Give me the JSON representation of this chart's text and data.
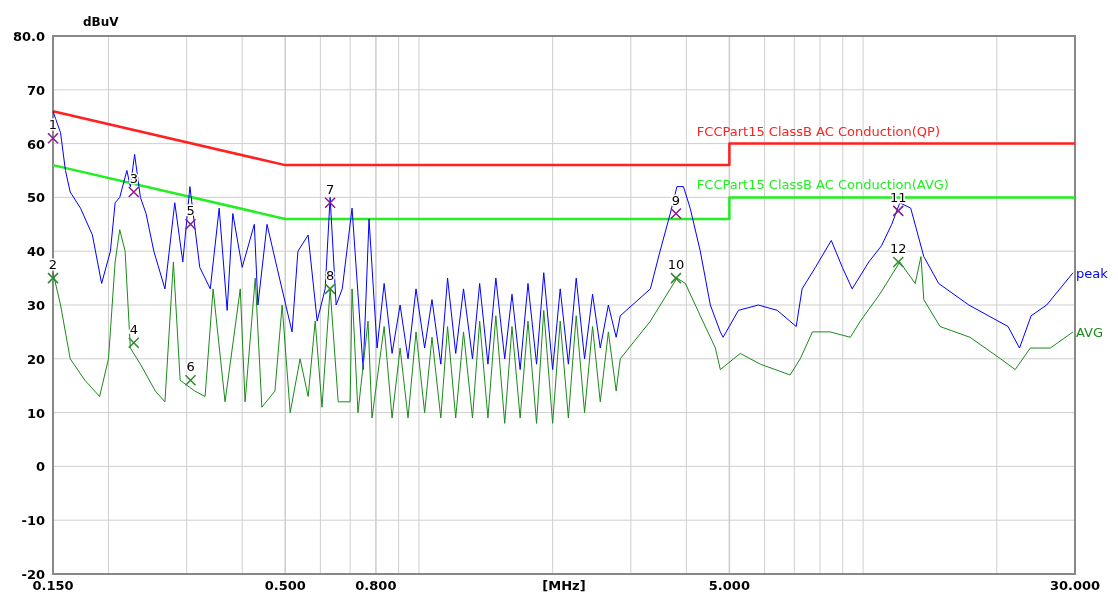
{
  "chart_data": {
    "type": "line",
    "ylabel": "dBuV",
    "xlabel": "[MHz]",
    "log": "x",
    "grid": true,
    "legend": false,
    "marker": "none",
    "line_style": "solid",
    "xlim": [
      0.15,
      30
    ],
    "ylim": [
      -20,
      80
    ],
    "xticks": [
      {
        "value": 0.15,
        "label": "0.150"
      },
      {
        "value": 0.2,
        "label": null
      },
      {
        "value": 0.3,
        "label": null
      },
      {
        "value": 0.4,
        "label": null
      },
      {
        "value": 0.5,
        "label": "0.500"
      },
      {
        "value": 0.6,
        "label": null
      },
      {
        "value": 0.7,
        "label": null
      },
      {
        "value": 0.8,
        "label": "0.800"
      },
      {
        "value": 0.9,
        "label": null
      },
      {
        "value": 1,
        "label": null
      },
      {
        "value": 2,
        "label": null
      },
      {
        "value": 3,
        "label": null
      },
      {
        "value": 4,
        "label": null
      },
      {
        "value": 5,
        "label": "5.000"
      },
      {
        "value": 6,
        "label": null
      },
      {
        "value": 7,
        "label": null
      },
      {
        "value": 8,
        "label": null
      },
      {
        "value": 9,
        "label": null
      },
      {
        "value": 10,
        "label": null
      },
      {
        "value": 20,
        "label": null
      },
      {
        "value": 30,
        "label": "30.000"
      }
    ],
    "yticks": [
      -20,
      -10,
      0,
      10,
      20,
      30,
      40,
      50,
      60,
      70,
      {
        "value": 80,
        "label": "80.0"
      }
    ],
    "series": [
      {
        "name": "FCCPart15 ClassB AC Conduction(QP)",
        "color": "#ff2020",
        "x": [
          0.15,
          0.5,
          5,
          5,
          30
        ],
        "values": [
          66,
          56,
          56,
          60,
          60
        ]
      },
      {
        "name": "FCCPart15 ClassB AC Conduction(AVG)",
        "color": "#22ee22",
        "x": [
          0.15,
          0.5,
          5,
          5,
          30
        ],
        "values": [
          56,
          46,
          46,
          50,
          50
        ]
      },
      {
        "name": "peak",
        "color": "#0000ff",
        "x": [
          0.15,
          0.156,
          0.16,
          0.164,
          0.173,
          0.184,
          0.193,
          0.202,
          0.207,
          0.212,
          0.22,
          0.224,
          0.229,
          0.236,
          0.243,
          0.253,
          0.268,
          0.282,
          0.294,
          0.305,
          0.321,
          0.339,
          0.355,
          0.37,
          0.381,
          0.4,
          0.426,
          0.434,
          0.455,
          0.479,
          0.518,
          0.534,
          0.563,
          0.59,
          0.615,
          0.631,
          0.651,
          0.672,
          0.707,
          0.749,
          0.772,
          0.805,
          0.835,
          0.87,
          0.907,
          0.945,
          0.985,
          1.03,
          1.07,
          1.12,
          1.16,
          1.21,
          1.26,
          1.32,
          1.37,
          1.43,
          1.49,
          1.56,
          1.62,
          1.69,
          1.76,
          1.84,
          1.91,
          2.0,
          2.08,
          2.17,
          2.26,
          2.36,
          2.46,
          2.56,
          2.67,
          2.78,
          2.84,
          3.32,
          3.49,
          3.68,
          3.81,
          3.94,
          4.08,
          4.3,
          4.53,
          4.77,
          4.84,
          5.24,
          5.81,
          6.41,
          7.07,
          7.29,
          7.81,
          8.48,
          8.98,
          9.45,
          10.3,
          11.0,
          11.6,
          12.1,
          12.8,
          13.7,
          14.8,
          17.3,
          21.2,
          22.5,
          23.9,
          25.9,
          29.7
        ],
        "values": [
          66,
          62,
          55,
          51,
          48,
          43,
          34,
          40,
          49,
          50,
          55,
          52,
          58,
          50,
          47,
          40,
          33,
          49,
          38,
          52,
          37,
          33,
          48,
          29,
          47,
          37,
          45,
          30,
          45,
          37,
          25,
          40,
          43,
          27,
          33,
          50,
          30,
          33,
          48,
          18,
          46,
          22,
          34,
          21,
          30,
          20,
          33,
          22,
          31,
          19,
          35,
          21,
          33,
          20,
          34,
          19,
          35,
          20,
          32,
          18,
          34,
          19,
          36,
          18,
          33,
          19,
          35,
          20,
          32,
          22,
          30,
          24,
          28,
          33,
          40,
          47,
          52,
          52,
          48,
          40,
          30,
          25,
          24,
          29,
          30,
          29,
          26,
          33,
          37,
          42,
          37,
          33,
          38,
          41,
          45,
          49,
          48,
          39,
          34,
          30,
          26,
          22,
          28,
          30,
          36
        ]
      },
      {
        "name": "AVG",
        "color": "#1a8a1a",
        "x": [
          0.15,
          0.156,
          0.164,
          0.177,
          0.191,
          0.2,
          0.207,
          0.212,
          0.218,
          0.224,
          0.236,
          0.255,
          0.268,
          0.28,
          0.29,
          0.313,
          0.33,
          0.344,
          0.366,
          0.396,
          0.406,
          0.428,
          0.443,
          0.474,
          0.492,
          0.513,
          0.54,
          0.563,
          0.584,
          0.605,
          0.631,
          0.658,
          0.7,
          0.707,
          0.729,
          0.768,
          0.784,
          0.835,
          0.87,
          0.907,
          0.945,
          0.985,
          1.03,
          1.07,
          1.12,
          1.16,
          1.21,
          1.26,
          1.32,
          1.37,
          1.43,
          1.49,
          1.56,
          1.62,
          1.69,
          1.76,
          1.84,
          1.91,
          2.0,
          2.08,
          2.17,
          2.26,
          2.36,
          2.46,
          2.56,
          2.67,
          2.78,
          2.84,
          3.32,
          3.68,
          3.81,
          3.98,
          4.3,
          4.65,
          4.77,
          5.29,
          5.87,
          6.85,
          7.22,
          7.69,
          8.43,
          9.36,
          9.86,
          10.9,
          12.1,
          13.1,
          13.5,
          13.7,
          14.9,
          17.4,
          20.4,
          22.0,
          23.8,
          26.4,
          29.7
        ],
        "values": [
          36,
          30,
          20,
          16,
          13,
          20,
          38,
          44,
          40,
          22,
          19,
          14,
          12,
          38,
          16,
          14,
          13,
          33,
          12,
          33,
          12,
          35,
          11,
          14,
          30,
          10,
          20,
          13,
          27,
          11,
          33,
          12,
          12,
          33,
          10,
          27,
          9,
          26,
          9,
          22,
          9,
          25,
          10,
          24,
          9,
          26,
          9,
          25,
          9,
          27,
          9,
          28,
          8,
          26,
          9,
          27,
          8,
          29,
          8,
          27,
          9,
          28,
          10,
          26,
          12,
          25,
          14,
          20,
          27,
          33,
          35,
          34,
          28,
          22,
          18,
          21,
          19,
          17,
          20,
          25,
          25,
          24,
          27,
          32,
          38,
          34,
          39,
          31,
          26,
          24,
          20,
          18,
          22,
          22,
          25
        ]
      },
      {
        "type": "scatter",
        "marker": "cross",
        "color": "#8b1a8b",
        "x": [
          0.15,
          0.228,
          0.306,
          0.631,
          3.79,
          12.0
        ],
        "values": [
          61,
          51,
          45,
          49,
          47,
          47.5
        ]
      },
      {
        "type": "scatter",
        "marker": "cross",
        "color": "#2e8b2e",
        "x": [
          0.15,
          0.228,
          0.306,
          0.631,
          3.79,
          12.0
        ],
        "values": [
          35,
          23,
          16,
          33,
          35,
          38
        ]
      }
    ],
    "annotations": [
      {
        "text": "1",
        "x": 0.15,
        "y": 61
      },
      {
        "text": "2",
        "x": 0.15,
        "y": 35
      },
      {
        "text": "3",
        "x": 0.228,
        "y": 51
      },
      {
        "text": "4",
        "x": 0.228,
        "y": 23
      },
      {
        "text": "5",
        "x": 0.306,
        "y": 45
      },
      {
        "text": "6",
        "x": 0.306,
        "y": 16
      },
      {
        "text": "7",
        "x": 0.631,
        "y": 49
      },
      {
        "text": "8",
        "x": 0.631,
        "y": 33
      },
      {
        "text": "9",
        "x": 3.79,
        "y": 47
      },
      {
        "text": "10",
        "x": 3.79,
        "y": 35
      },
      {
        "text": "11",
        "x": 12.0,
        "y": 47.5
      },
      {
        "text": "12",
        "x": 12.0,
        "y": 38
      }
    ]
  }
}
